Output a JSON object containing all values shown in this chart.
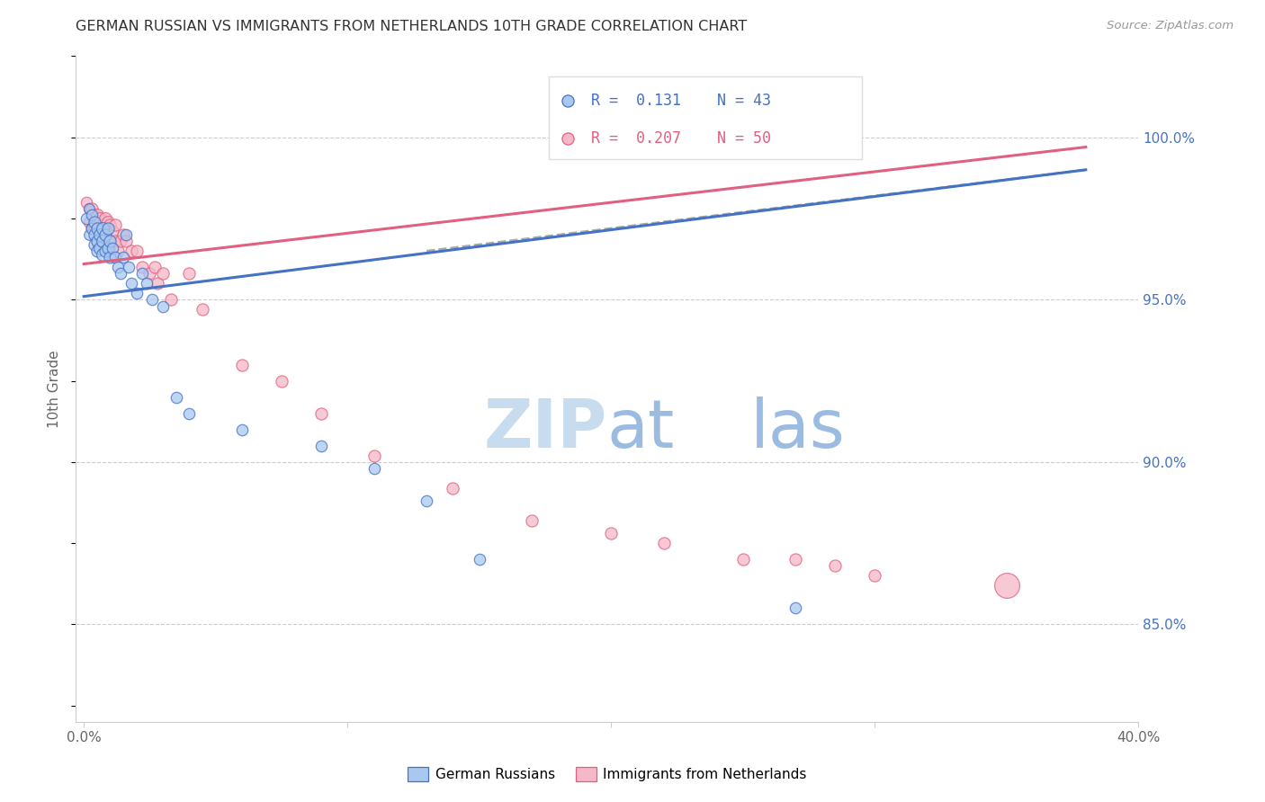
{
  "title": "GERMAN RUSSIAN VS IMMIGRANTS FROM NETHERLANDS 10TH GRADE CORRELATION CHART",
  "source": "Source: ZipAtlas.com",
  "ylabel": "10th Grade",
  "right_ytick_labels": [
    "85.0%",
    "90.0%",
    "95.0%",
    "100.0%"
  ],
  "right_ytick_values": [
    0.85,
    0.9,
    0.95,
    1.0
  ],
  "legend_blue_label": "German Russians",
  "legend_pink_label": "Immigrants from Netherlands",
  "R_blue": 0.131,
  "N_blue": 43,
  "R_pink": 0.207,
  "N_pink": 50,
  "blue_color": "#A8C8F0",
  "pink_color": "#F5B8C8",
  "blue_line_color": "#4472C4",
  "pink_line_color": "#E06080",
  "title_color": "#333333",
  "axis_label_color": "#666666",
  "right_label_color": "#4472C4",
  "blue_scatter": {
    "x": [
      0.001,
      0.002,
      0.002,
      0.003,
      0.003,
      0.004,
      0.004,
      0.004,
      0.005,
      0.005,
      0.005,
      0.006,
      0.006,
      0.007,
      0.007,
      0.007,
      0.008,
      0.008,
      0.009,
      0.009,
      0.01,
      0.01,
      0.011,
      0.012,
      0.013,
      0.014,
      0.015,
      0.016,
      0.017,
      0.018,
      0.02,
      0.022,
      0.024,
      0.026,
      0.03,
      0.035,
      0.04,
      0.06,
      0.09,
      0.11,
      0.13,
      0.15,
      0.27
    ],
    "y": [
      0.975,
      0.978,
      0.97,
      0.976,
      0.972,
      0.974,
      0.97,
      0.967,
      0.972,
      0.968,
      0.965,
      0.97,
      0.966,
      0.972,
      0.968,
      0.964,
      0.97,
      0.965,
      0.972,
      0.966,
      0.968,
      0.963,
      0.966,
      0.963,
      0.96,
      0.958,
      0.963,
      0.97,
      0.96,
      0.955,
      0.952,
      0.958,
      0.955,
      0.95,
      0.948,
      0.92,
      0.915,
      0.91,
      0.905,
      0.898,
      0.888,
      0.87,
      0.855
    ],
    "sizes": [
      80,
      70,
      70,
      80,
      80,
      90,
      90,
      90,
      90,
      90,
      90,
      100,
      100,
      100,
      100,
      100,
      90,
      90,
      90,
      90,
      90,
      90,
      80,
      80,
      80,
      80,
      80,
      80,
      80,
      80,
      80,
      80,
      80,
      80,
      80,
      80,
      80,
      80,
      80,
      80,
      80,
      80,
      80
    ]
  },
  "pink_scatter": {
    "x": [
      0.001,
      0.002,
      0.002,
      0.003,
      0.003,
      0.004,
      0.004,
      0.005,
      0.005,
      0.005,
      0.006,
      0.006,
      0.007,
      0.007,
      0.008,
      0.008,
      0.009,
      0.009,
      0.01,
      0.01,
      0.011,
      0.012,
      0.012,
      0.013,
      0.014,
      0.015,
      0.016,
      0.018,
      0.02,
      0.022,
      0.025,
      0.027,
      0.028,
      0.03,
      0.033,
      0.04,
      0.045,
      0.06,
      0.075,
      0.09,
      0.11,
      0.14,
      0.17,
      0.2,
      0.22,
      0.25,
      0.27,
      0.285,
      0.3,
      0.35
    ],
    "y": [
      0.98,
      0.978,
      0.974,
      0.978,
      0.972,
      0.976,
      0.973,
      0.976,
      0.972,
      0.968,
      0.975,
      0.97,
      0.973,
      0.968,
      0.975,
      0.97,
      0.974,
      0.968,
      0.973,
      0.968,
      0.971,
      0.973,
      0.968,
      0.965,
      0.968,
      0.97,
      0.968,
      0.965,
      0.965,
      0.96,
      0.958,
      0.96,
      0.955,
      0.958,
      0.95,
      0.958,
      0.947,
      0.93,
      0.925,
      0.915,
      0.902,
      0.892,
      0.882,
      0.878,
      0.875,
      0.87,
      0.87,
      0.868,
      0.865,
      0.862
    ],
    "sizes": [
      80,
      80,
      80,
      90,
      90,
      100,
      100,
      100,
      100,
      100,
      100,
      100,
      100,
      100,
      100,
      100,
      100,
      100,
      90,
      90,
      90,
      90,
      90,
      90,
      90,
      90,
      90,
      90,
      90,
      90,
      90,
      90,
      90,
      90,
      90,
      90,
      90,
      90,
      90,
      90,
      90,
      90,
      90,
      90,
      90,
      90,
      90,
      90,
      90,
      400
    ]
  },
  "blue_line": {
    "x0": 0.0,
    "x1": 0.38,
    "y0": 0.951,
    "y1": 0.99
  },
  "pink_line": {
    "x0": 0.0,
    "x1": 0.38,
    "y0": 0.961,
    "y1": 0.997
  },
  "dashed_line_x": [
    0.13,
    0.38
  ],
  "dashed_line_y": [
    0.965,
    0.99
  ],
  "xlim": [
    -0.003,
    0.4
  ],
  "ylim": [
    0.82,
    1.025
  ],
  "xtick_positions": [
    0.0,
    0.1,
    0.2,
    0.3,
    0.4
  ],
  "xtick_labels": [
    "",
    "",
    "",
    "",
    ""
  ],
  "extra_xtick_labels": {
    "0.0": "0.0%",
    "0.40": "40.0%"
  }
}
